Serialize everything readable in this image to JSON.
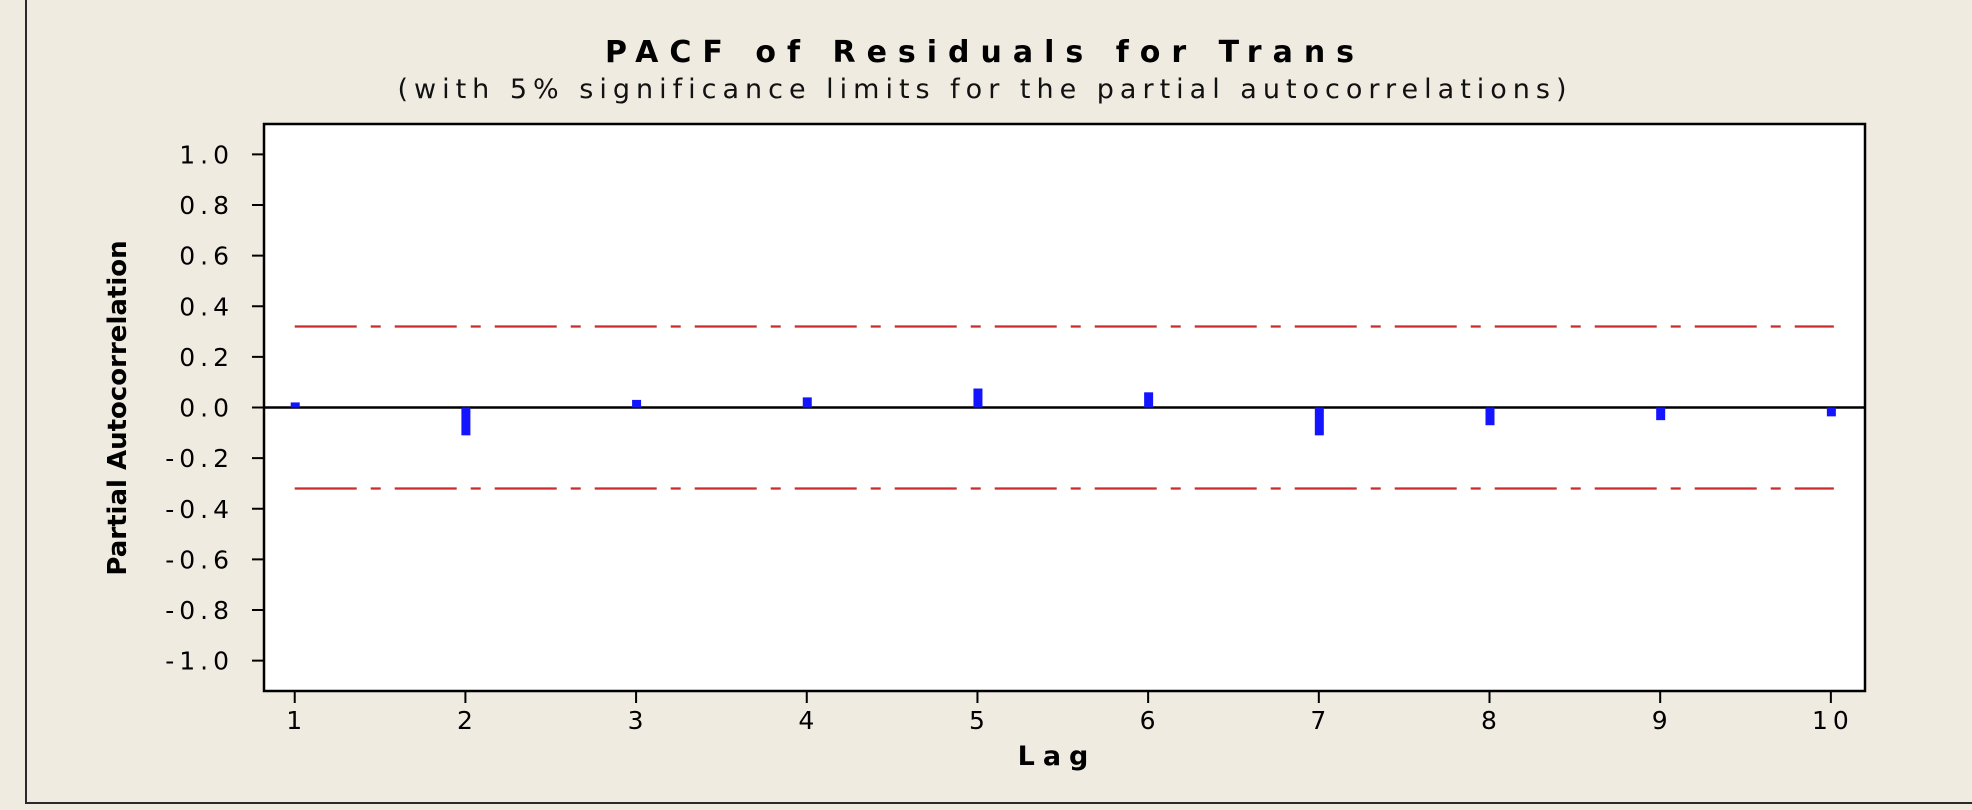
{
  "chart_data": {
    "type": "bar",
    "title": "PACF of Residuals for Trans",
    "subtitle": "(with 5% significance limits for the partial autocorrelations)",
    "xlabel": "Lag",
    "ylabel": "Partial Autocorrelation",
    "x": [
      1,
      2,
      3,
      4,
      5,
      6,
      7,
      8,
      9,
      10
    ],
    "x_tick_labels": [
      "1",
      "2",
      "3",
      "4",
      "5",
      "6",
      "7",
      "8",
      "9",
      "10"
    ],
    "series": [
      {
        "values": [
          0.02,
          -0.11,
          0.03,
          0.04,
          0.075,
          0.06,
          -0.11,
          -0.07,
          -0.05,
          -0.035
        ]
      }
    ],
    "significance_limits": [
      0.32,
      -0.32
    ],
    "ylim": [
      -1.12,
      1.12
    ],
    "xlim": [
      0.82,
      10.2
    ],
    "yticks": [
      1.0,
      0.8,
      0.6,
      0.4,
      0.2,
      0.0,
      -0.2,
      -0.4,
      -0.6,
      -0.8,
      -1.0
    ],
    "y_tick_labels": [
      "1.0",
      "0.8",
      "0.6",
      "0.4",
      "0.2",
      "0.0",
      "-0.2",
      "-0.4",
      "-0.6",
      "-0.8",
      "-1.0"
    ],
    "grid": false,
    "legend": "none",
    "colors": {
      "bar": "#1414ff",
      "limit_line": "#cc2b2b",
      "zero_line": "#000000",
      "plot_background": "#ffffff",
      "page_background": "#efebe1"
    }
  }
}
